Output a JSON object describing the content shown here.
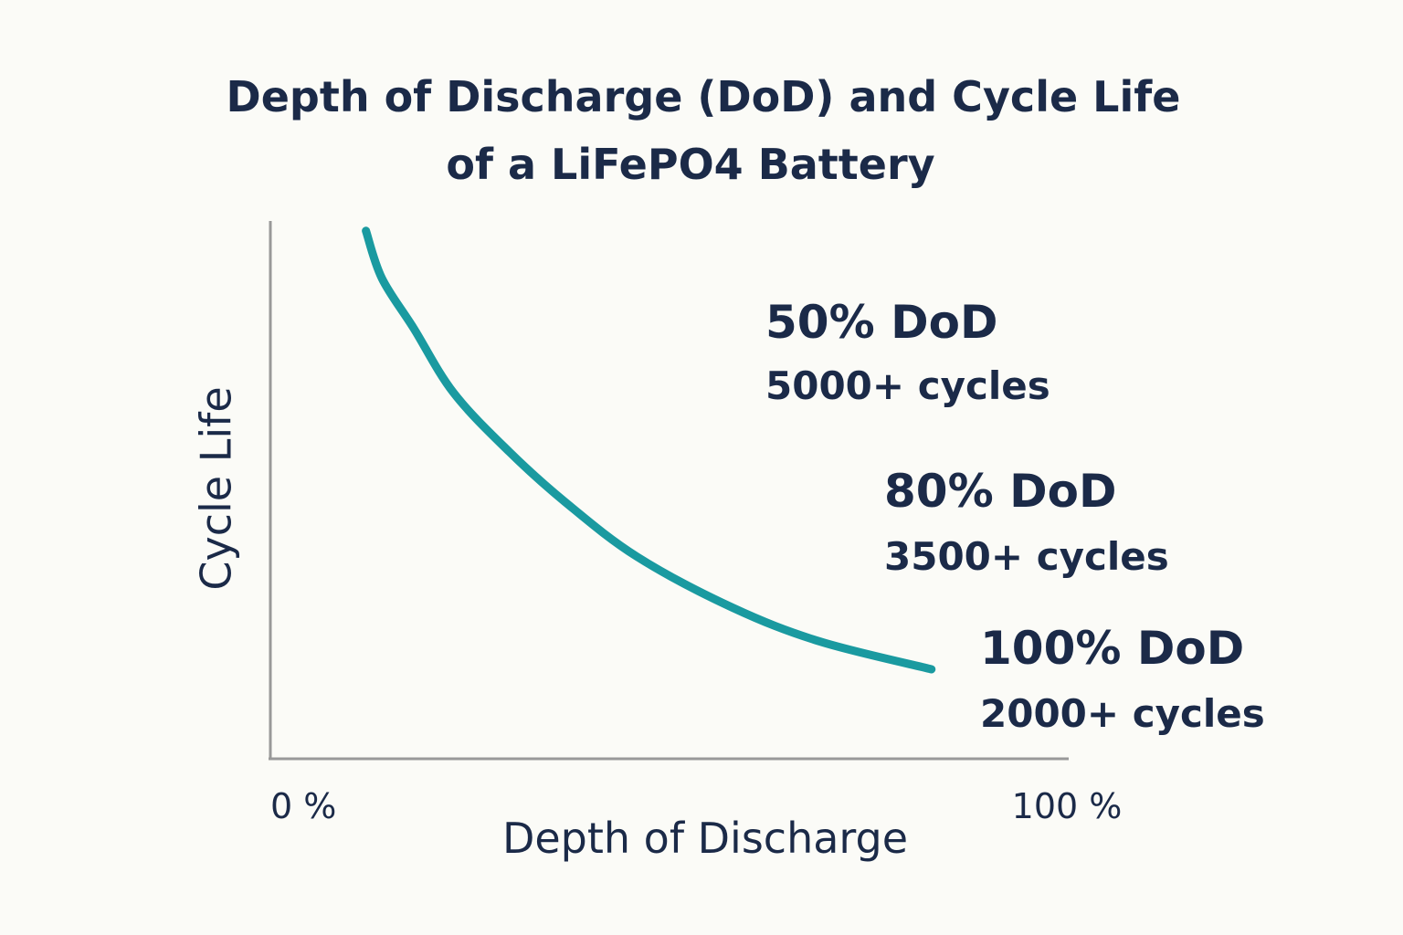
{
  "chart_data": {
    "type": "line",
    "title": [
      "Depth of Discharge (DoD) and Cycle Life",
      "of a LiFePO4 Battery"
    ],
    "x_label": "Depth of Discharge",
    "y_label": "Cycle Life",
    "x": [
      12,
      14,
      18,
      23,
      30,
      37,
      46,
      58,
      69,
      83
    ],
    "values": [
      5890,
      5360,
      4800,
      4080,
      3420,
      2860,
      2250,
      1680,
      1300,
      990
    ],
    "color": "#1a9aa0",
    "xlim": [
      0,
      100
    ],
    "xticks": [
      {
        "value": 0,
        "label": "0 %"
      },
      {
        "value": 100,
        "label": "100 %"
      }
    ],
    "ylim": [
      0,
      6000
    ],
    "annotations": [
      {
        "label": "50% DoD",
        "text": "5000+ cycles"
      },
      {
        "label": "80% DoD",
        "text": "3500+ cycles"
      },
      {
        "label": "100% DoD",
        "text": "2000+ cycles"
      }
    ]
  }
}
